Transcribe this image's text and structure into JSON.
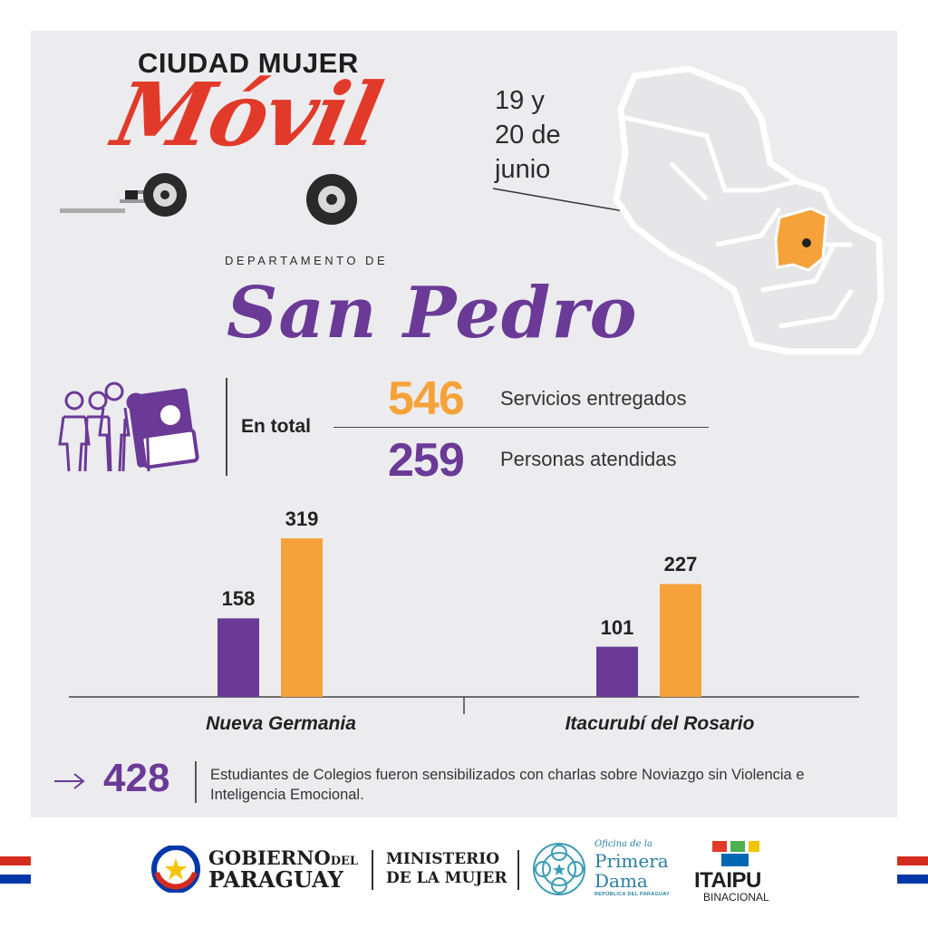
{
  "header": {
    "title_part1": "CIUDAD",
    "title_part2": "MUJER",
    "script_word": "Móvil",
    "date": "19 y\n20 de\njunio",
    "department_prefix": "DEPARTAMENTO DE",
    "department_name": "San Pedro"
  },
  "totals": {
    "label": "En total",
    "services_value": "546",
    "services_label": "Servicios entregados",
    "people_value": "259",
    "people_label": "Personas atendidas"
  },
  "chart_data": {
    "type": "bar",
    "categories": [
      "Nueva Germania",
      "Itacurubí del Rosario"
    ],
    "series": [
      {
        "values": [
          158,
          101
        ],
        "color": "#6a3a96"
      },
      {
        "values": [
          319,
          227
        ],
        "color": "#f5a23a"
      }
    ],
    "ylim": [
      0,
      350
    ],
    "grid": false
  },
  "footer_note": {
    "value": "428",
    "text": "Estudiantes de Colegios fueron sensibilizados con charlas sobre Noviazgo sin Violencia e Inteligencia Emocional."
  },
  "logos": {
    "gobierno_line1": "GOBIERNO",
    "gobierno_del": "DEL",
    "gobierno_line2": "PARAGUAY",
    "ministerio_line1": "MINISTERIO",
    "ministerio_line2": "DE LA MUJER",
    "oficina": "Oficina de la",
    "primera": "Primera",
    "dama": "Dama",
    "republica": "REPÚBLICA DEL PARAGUAY",
    "itaipu": "ITAIPU",
    "binacional": "BINACIONAL"
  },
  "colors": {
    "purple": "#6a3a96",
    "orange": "#f5a23a",
    "red": "#e23a2a",
    "panel": "#ececef"
  }
}
